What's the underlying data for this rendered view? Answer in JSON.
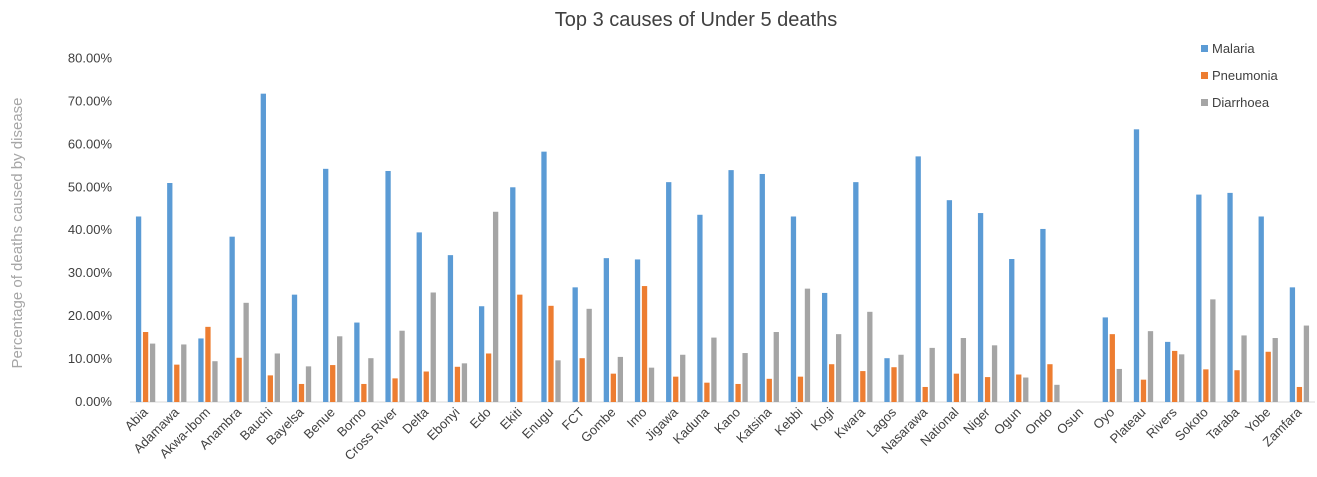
{
  "chart_data": {
    "type": "bar",
    "title": "Top 3 causes of Under 5 deaths",
    "xlabel": "",
    "ylabel": "Percentage of deaths caused by disease",
    "ylim": [
      0,
      0.85
    ],
    "yticks": [
      "0.00%",
      "10.00%",
      "20.00%",
      "30.00%",
      "40.00%",
      "50.00%",
      "60.00%",
      "70.00%",
      "80.00%"
    ],
    "legend": "top-right",
    "grid": false,
    "categories": [
      "Abia",
      "Adamawa",
      "Akwa-Ibom",
      "Anambra",
      "Bauchi",
      "Bayelsa",
      "Benue",
      "Borno",
      "Cross River",
      "Delta",
      "Ebonyi",
      "Edo",
      "Ekiti",
      "Enugu",
      "FCT",
      "Gombe",
      "Imo",
      "Jigawa",
      "Kaduna",
      "Kano",
      "Katsina",
      "Kebbi",
      "Kogi",
      "Kwara",
      "Lagos",
      "Nasarawa",
      "National",
      "Niger",
      "Ogun",
      "Ondo",
      "Osun",
      "Oyo",
      "Plateau",
      "Rivers",
      "Sokoto",
      "Taraba",
      "Yobe",
      "Zamfara"
    ],
    "series": [
      {
        "name": "Malaria",
        "color": "#5b9bd5",
        "values": [
          0.432,
          0.51,
          0.148,
          0.385,
          0.718,
          0.25,
          0.543,
          0.185,
          0.538,
          0.395,
          0.342,
          0.223,
          0.5,
          0.583,
          0.267,
          0.335,
          0.332,
          0.512,
          0.436,
          0.54,
          0.531,
          0.432,
          0.254,
          0.512,
          0.102,
          0.572,
          0.47,
          0.44,
          0.333,
          0.403,
          0,
          0.197,
          0.635,
          0.14,
          0.483,
          0.487,
          0.432,
          0.267
        ]
      },
      {
        "name": "Pneumonia",
        "color": "#ed7d31",
        "values": [
          0.163,
          0.087,
          0.175,
          0.103,
          0.062,
          0.042,
          0.086,
          0.042,
          0.055,
          0.071,
          0.082,
          0.113,
          0.25,
          0.224,
          0.102,
          0.066,
          0.27,
          0.059,
          0.045,
          0.042,
          0.054,
          0.059,
          0.088,
          0.072,
          0.081,
          0.035,
          0.066,
          0.058,
          0.064,
          0.088,
          0,
          0.158,
          0.052,
          0.119,
          0.076,
          0.074,
          0.117,
          0.035
        ]
      },
      {
        "name": "Diarrhoea",
        "color": "#a5a5a5",
        "values": [
          0.136,
          0.134,
          0.095,
          0.231,
          0.113,
          0.083,
          0.153,
          0.102,
          0.166,
          0.255,
          0.09,
          0.443,
          0,
          0.097,
          0.217,
          0.105,
          0.08,
          0.11,
          0.15,
          0.114,
          0.163,
          0.264,
          0.158,
          0.21,
          0.11,
          0.126,
          0.149,
          0.132,
          0.057,
          0.04,
          0,
          0.077,
          0.165,
          0.111,
          0.239,
          0.155,
          0.149,
          0.178
        ]
      }
    ]
  }
}
